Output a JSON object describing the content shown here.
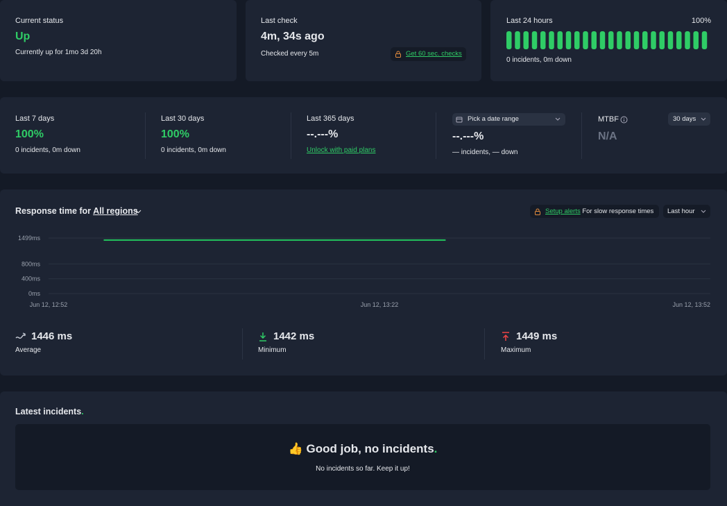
{
  "status": {
    "label": "Current status",
    "value": "Up",
    "detail": "Currently up for 1mo 3d 20h"
  },
  "last_check": {
    "label": "Last check",
    "value": "4m, 34s ago",
    "detail": "Checked every 5m",
    "link": "Get 60 sec. checks"
  },
  "last_24h": {
    "label": "Last 24 hours",
    "percent": "100%",
    "detail": "0 incidents, 0m down"
  },
  "periods": [
    {
      "label": "Last 7 days",
      "value": "100%",
      "detail": "0 incidents, 0m down"
    },
    {
      "label": "Last 30 days",
      "value": "100%",
      "detail": "0 incidents, 0m down"
    },
    {
      "label": "Last 365 days",
      "value": "--.---%",
      "link": "Unlock with paid plans"
    },
    {
      "picker": "Pick a date range",
      "value": "--.---%",
      "detail": "— incidents, — down"
    }
  ],
  "mtbf": {
    "label": "MTBF",
    "range": "30 days",
    "value": "N/A"
  },
  "response": {
    "title": "Response time for",
    "region": "All regions",
    "alert_link": "Setup alerts",
    "alert_text": "For slow response times",
    "range": "Last hour",
    "chart": {
      "ylim": [
        0,
        1499
      ],
      "yticks": [
        {
          "value": 0,
          "label": "0ms"
        },
        {
          "value": 400,
          "label": "400ms"
        },
        {
          "value": 800,
          "label": "800ms"
        },
        {
          "value": 1499,
          "label": "1499ms"
        }
      ],
      "xlim": [
        "Jun 12, 12:52",
        "Jun 12, 13:52"
      ],
      "xticks": [
        "Jun 12, 12:52",
        "Jun 12, 13:22",
        "Jun 12, 13:52"
      ],
      "series": [
        {
          "color": "#22c55e",
          "x": [
            "Jun 12, 12:57",
            "Jun 12, 13:28"
          ],
          "values": [
            1446,
            1446
          ]
        }
      ]
    },
    "stats": [
      {
        "value": "1446 ms",
        "label": "Average"
      },
      {
        "value": "1442 ms",
        "label": "Minimum"
      },
      {
        "value": "1449 ms",
        "label": "Maximum"
      }
    ]
  },
  "incidents": {
    "title": "Latest incidents",
    "title_end": ".",
    "empty_icon": "👍",
    "empty_title": "Good job, no incidents",
    "empty_title_end": ".",
    "empty_text": "No incidents so far. Keep it up!"
  }
}
